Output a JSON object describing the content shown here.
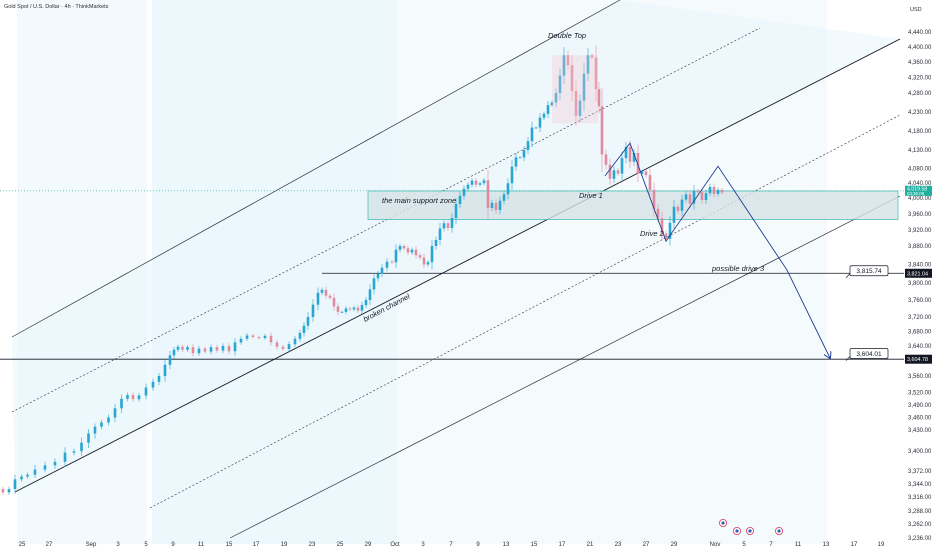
{
  "header": {
    "title": "Gold Spot / U.S. Dollar · 4h · ThinkMarkets",
    "currency": "USD"
  },
  "colors": {
    "up": "#26a6d1",
    "down": "#e08a9e",
    "channel_fill": "#e9f6fb",
    "zone_fill": "#d5e3e6",
    "zone_border": "#2bb3a6",
    "projection": "#1f3a93",
    "broken_label": "#8b1e3f",
    "price_tag": "#1fb0a2",
    "level_tag": "#131722"
  },
  "chart_data": {
    "type": "candlestick",
    "title": "Gold Spot / U.S. Dollar · 4h · ThinkMarkets",
    "ylabel": "USD",
    "y_ticks": [
      "4,440.00",
      "4,400.00",
      "4,360.00",
      "4,320.00",
      "4,280.00",
      "4,230.00",
      "4,180.00",
      "4,130.00",
      "4,080.00",
      "4,040.00",
      "4,000.00",
      "3,960.00",
      "3,920.00",
      "3,880.00",
      "3,840.00",
      "3,800.00",
      "3,760.00",
      "3,720.00",
      "3,680.00",
      "3,640.00",
      "3,600.00",
      "3,560.00",
      "3,520.00",
      "3,490.00",
      "3,460.00",
      "3,430.00",
      "3,400.00",
      "3,372.00",
      "3,344.00",
      "3,316.00",
      "3,288.00",
      "3,262.00",
      "3,236.00"
    ],
    "x_ticks": [
      "25",
      "27",
      "Sep",
      "3",
      "5",
      "9",
      "11",
      "15",
      "17",
      "19",
      "23",
      "25",
      "29",
      "Oct",
      "3",
      "7",
      "9",
      "13",
      "15",
      "17",
      "21",
      "23",
      "27",
      "29",
      "Nov",
      "5",
      "7",
      "11",
      "13",
      "17",
      "19"
    ],
    "price_path": [
      [
        0,
        3333
      ],
      [
        6,
        3326
      ],
      [
        12,
        3333
      ],
      [
        18,
        3354
      ],
      [
        25,
        3360
      ],
      [
        30,
        3364
      ],
      [
        40,
        3374
      ],
      [
        50,
        3380
      ],
      [
        60,
        3385
      ],
      [
        70,
        3398
      ],
      [
        78,
        3400
      ],
      [
        85,
        3412
      ],
      [
        92,
        3425
      ],
      [
        98,
        3438
      ],
      [
        105,
        3448
      ],
      [
        112,
        3460
      ],
      [
        118,
        3482
      ],
      [
        125,
        3505
      ],
      [
        130,
        3514
      ],
      [
        136,
        3504
      ],
      [
        142,
        3513
      ],
      [
        150,
        3532
      ],
      [
        156,
        3546
      ],
      [
        162,
        3560
      ],
      [
        168,
        3590
      ],
      [
        172,
        3615
      ],
      [
        176,
        3630
      ],
      [
        180,
        3638
      ],
      [
        185,
        3630
      ],
      [
        190,
        3637
      ],
      [
        196,
        3621
      ],
      [
        202,
        3633
      ],
      [
        208,
        3625
      ],
      [
        214,
        3637
      ],
      [
        220,
        3628
      ],
      [
        226,
        3640
      ],
      [
        232,
        3626
      ],
      [
        238,
        3650
      ],
      [
        244,
        3660
      ],
      [
        250,
        3669
      ],
      [
        256,
        3665
      ],
      [
        262,
        3662
      ],
      [
        268,
        3668
      ],
      [
        274,
        3650
      ],
      [
        280,
        3638
      ],
      [
        286,
        3632
      ],
      [
        292,
        3645
      ],
      [
        298,
        3660
      ],
      [
        302,
        3676
      ],
      [
        306,
        3696
      ],
      [
        310,
        3720
      ],
      [
        316,
        3749
      ],
      [
        320,
        3777
      ],
      [
        324,
        3784
      ],
      [
        328,
        3770
      ],
      [
        332,
        3765
      ],
      [
        336,
        3745
      ],
      [
        340,
        3732
      ],
      [
        344,
        3732
      ],
      [
        348,
        3740
      ],
      [
        352,
        3738
      ],
      [
        356,
        3742
      ],
      [
        360,
        3735
      ],
      [
        364,
        3748
      ],
      [
        368,
        3760
      ],
      [
        372,
        3785
      ],
      [
        376,
        3810
      ],
      [
        380,
        3820
      ],
      [
        384,
        3833
      ],
      [
        390,
        3846
      ],
      [
        394,
        3845
      ],
      [
        398,
        3872
      ],
      [
        402,
        3880
      ],
      [
        406,
        3875
      ],
      [
        410,
        3866
      ],
      [
        414,
        3872
      ],
      [
        418,
        3860
      ],
      [
        422,
        3855
      ],
      [
        426,
        3840
      ],
      [
        430,
        3845
      ],
      [
        434,
        3880
      ],
      [
        438,
        3895
      ],
      [
        442,
        3924
      ],
      [
        446,
        3937
      ],
      [
        450,
        3925
      ],
      [
        454,
        3950
      ],
      [
        458,
        3985
      ],
      [
        462,
        4006
      ],
      [
        466,
        4025
      ],
      [
        470,
        4036
      ],
      [
        474,
        4047
      ],
      [
        478,
        4036
      ],
      [
        482,
        4040
      ],
      [
        486,
        4048
      ],
      [
        490,
        3975
      ],
      [
        494,
        3988
      ],
      [
        498,
        3970
      ],
      [
        502,
        3993
      ],
      [
        506,
        4010
      ],
      [
        510,
        4040
      ],
      [
        514,
        4085
      ],
      [
        518,
        4110
      ],
      [
        522,
        4110
      ],
      [
        526,
        4130
      ],
      [
        530,
        4153
      ],
      [
        534,
        4189
      ],
      [
        538,
        4189
      ],
      [
        542,
        4215
      ],
      [
        546,
        4225
      ],
      [
        550,
        4248
      ],
      [
        554,
        4255
      ],
      [
        558,
        4280
      ],
      [
        562,
        4325
      ],
      [
        566,
        4378
      ],
      [
        570,
        4352
      ],
      [
        574,
        4285
      ],
      [
        578,
        4220
      ],
      [
        582,
        4260
      ],
      [
        586,
        4330
      ],
      [
        590,
        4378
      ],
      [
        594,
        4372
      ],
      [
        598,
        4290
      ],
      [
        600,
        4245
      ],
      [
        604,
        4118
      ],
      [
        608,
        4090
      ],
      [
        612,
        4052
      ],
      [
        616,
        4075
      ],
      [
        620,
        4066
      ],
      [
        624,
        4108
      ],
      [
        628,
        4138
      ],
      [
        632,
        4098
      ],
      [
        636,
        4122
      ],
      [
        640,
        4066
      ],
      [
        644,
        4072
      ],
      [
        648,
        4062
      ],
      [
        652,
        4022
      ],
      [
        656,
        3973
      ],
      [
        660,
        3949
      ],
      [
        664,
        3911
      ],
      [
        668,
        3898
      ],
      [
        672,
        3938
      ],
      [
        676,
        3978
      ],
      [
        680,
        3968
      ],
      [
        684,
        3996
      ],
      [
        688,
        4010
      ],
      [
        692,
        3986
      ],
      [
        696,
        4020
      ],
      [
        700,
        4016
      ],
      [
        704,
        3995
      ],
      [
        708,
        4013
      ],
      [
        712,
        4030
      ],
      [
        716,
        4011
      ],
      [
        720,
        4022
      ],
      [
        724,
        4015
      ]
    ],
    "channel": {
      "label": "broken channel"
    },
    "support_zone": {
      "label": "the main support zone",
      "top": 4019,
      "bottom": 3946
    },
    "levels": [
      {
        "price": 3815.74,
        "label": "3,815.74"
      },
      {
        "price": 3604.01,
        "label": "3,604.01"
      }
    ],
    "current_price": {
      "price": 4019.58,
      "label": "4,019.58",
      "countdown": "03:36:09"
    },
    "level_axis_tags": [
      {
        "price": 3821.04,
        "label": "3,821.04"
      },
      {
        "price": 3604.78,
        "label": "3,604.78"
      }
    ],
    "annotations": [
      {
        "text": "Double Top",
        "at": [
          548,
          4424
        ]
      },
      {
        "text": "Drive 1",
        "at": [
          579,
          4000
        ]
      },
      {
        "text": "Drive 2",
        "at": [
          640,
          3905
        ]
      },
      {
        "text": "possible drive 3",
        "at": [
          712,
          3826
        ]
      }
    ],
    "projection_path": [
      [
        605,
        4060
      ],
      [
        630,
        4148
      ],
      [
        666,
        3892
      ],
      [
        718,
        4086
      ],
      [
        787,
        3828
      ],
      [
        830,
        3608
      ]
    ]
  }
}
